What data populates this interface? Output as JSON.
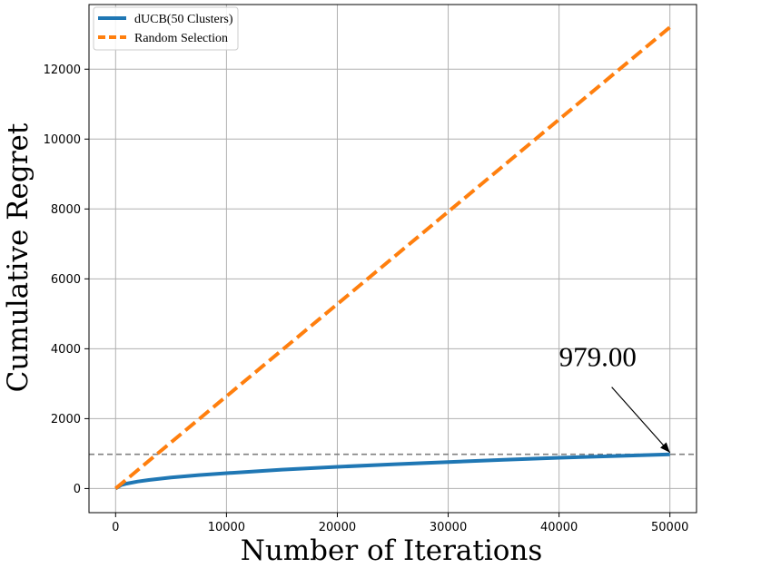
{
  "chart_data": {
    "type": "line",
    "title": "",
    "xlabel": "Number of Iterations",
    "ylabel": "Cumulative Regret",
    "xlim": [
      -2400,
      52400
    ],
    "ylim": [
      -690,
      13850
    ],
    "xticks": [
      0,
      10000,
      20000,
      30000,
      40000,
      50000
    ],
    "yticks": [
      0,
      2000,
      4000,
      6000,
      8000,
      10000,
      12000
    ],
    "grid": true,
    "legend_position": "top-left",
    "series": [
      {
        "name": "dUCB(50 Clusters)",
        "color": "#1f77b4",
        "style": "solid",
        "x": [
          0,
          500,
          1000,
          2000,
          3000,
          5000,
          7500,
          10000,
          15000,
          20000,
          25000,
          30000,
          35000,
          40000,
          45000,
          50000
        ],
        "y": [
          0,
          100,
          140,
          200,
          245,
          315,
          385,
          440,
          540,
          620,
          695,
          760,
          820,
          880,
          930,
          979
        ]
      },
      {
        "name": "Random Selection",
        "color": "#ff7f0e",
        "style": "dashed",
        "x": [
          0,
          10000,
          20000,
          30000,
          40000,
          50000
        ],
        "y": [
          0,
          2640,
          5280,
          7920,
          10560,
          13200
        ]
      }
    ],
    "reference_line": {
      "y": 979,
      "color": "#808080",
      "style": "dashed"
    },
    "annotation": {
      "text": "979.00",
      "point_x": 50000,
      "point_y": 979,
      "text_x": 40000,
      "text_y": 3500
    }
  }
}
